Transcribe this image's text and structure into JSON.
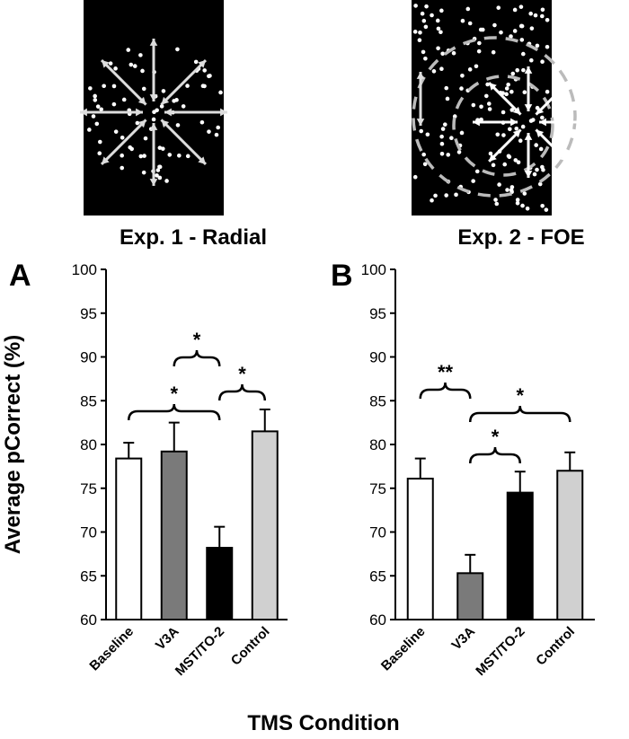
{
  "stimuli": [
    {
      "caption": "Exp. 1 - Radial"
    },
    {
      "caption": "Exp. 2 - FOE"
    }
  ],
  "y_label": "Average pCorrect (%)",
  "x_label": "TMS Condition",
  "chart_data": [
    {
      "type": "bar",
      "panel": "A",
      "categories": [
        "Baseline",
        "V3A",
        "MST/TO-2",
        "Control"
      ],
      "values": [
        78.4,
        79.2,
        68.2,
        81.5
      ],
      "errors": [
        1.8,
        3.3,
        2.4,
        2.5
      ],
      "colors": [
        "#ffffff",
        "#7a7a7a",
        "#000000",
        "#d0d0d0"
      ],
      "ylim": [
        60,
        100
      ],
      "yticks": [
        60,
        65,
        70,
        75,
        80,
        85,
        90,
        95,
        100
      ],
      "annotations": [
        {
          "text": "*",
          "between": [
            "V3A",
            "MST/TO-2"
          ]
        },
        {
          "text": "*",
          "between": [
            "Baseline",
            "MST/TO-2"
          ]
        },
        {
          "text": "*",
          "between": [
            "MST/TO-2",
            "Control"
          ]
        }
      ]
    },
    {
      "type": "bar",
      "panel": "B",
      "categories": [
        "Baseline",
        "V3A",
        "MST/TO-2",
        "Control"
      ],
      "values": [
        76.1,
        65.3,
        74.5,
        77.0
      ],
      "errors": [
        2.3,
        2.1,
        2.4,
        2.1
      ],
      "colors": [
        "#ffffff",
        "#7a7a7a",
        "#000000",
        "#d0d0d0"
      ],
      "ylim": [
        60,
        100
      ],
      "yticks": [
        60,
        65,
        70,
        75,
        80,
        85,
        90,
        95,
        100
      ],
      "annotations": [
        {
          "text": "**",
          "between": [
            "Baseline",
            "V3A"
          ]
        },
        {
          "text": "*",
          "between": [
            "V3A",
            "Control"
          ]
        },
        {
          "text": "*",
          "between": [
            "V3A",
            "MST/TO-2"
          ]
        }
      ]
    }
  ]
}
